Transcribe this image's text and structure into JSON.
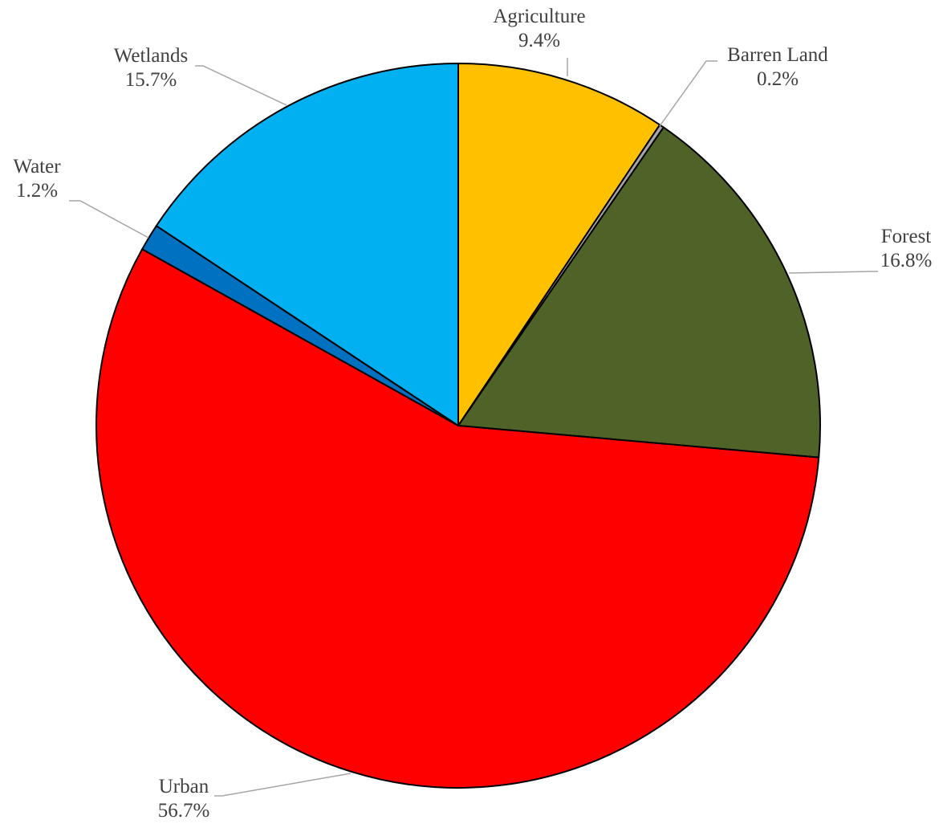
{
  "chart_data": {
    "type": "pie",
    "title": "",
    "slices": [
      {
        "label": "Agriculture",
        "value": 9.4,
        "display": "9.4%",
        "color": "#FFC000"
      },
      {
        "label": "Barren Land",
        "value": 0.2,
        "display": "0.2%",
        "color": "#A6A6A6"
      },
      {
        "label": "Forest",
        "value": 16.8,
        "display": "16.8%",
        "color": "#4F6228"
      },
      {
        "label": "Urban",
        "value": 56.7,
        "display": "56.7%",
        "color": "#FF0000"
      },
      {
        "label": "Water",
        "value": 1.2,
        "display": "1.2%",
        "color": "#0070C0"
      },
      {
        "label": "Wetlands",
        "value": 15.7,
        "display": "15.7%",
        "color": "#00B0F0"
      }
    ],
    "start_angle": "12 o'clock",
    "direction": "clockwise",
    "data_labels": "category name and percentage, outside with leader lines",
    "legend": "none"
  }
}
